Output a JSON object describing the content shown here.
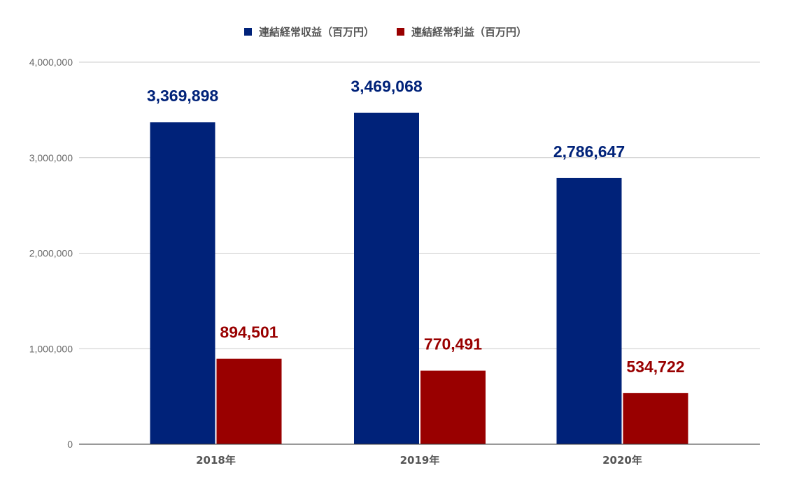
{
  "chart_data": {
    "type": "bar",
    "categories": [
      "2018年",
      "2019年",
      "2020年"
    ],
    "series": [
      {
        "name": "連結経常収益（百万円）",
        "color": "#002279",
        "values": [
          3369898,
          3469068,
          2786647
        ]
      },
      {
        "name": "連結経常利益（百万円）",
        "color": "#990000",
        "values": [
          894501,
          770491,
          534722
        ]
      }
    ],
    "ylim": [
      0,
      4000000
    ],
    "yticks": [
      0,
      1000000,
      2000000,
      3000000,
      4000000
    ],
    "ytick_labels": [
      "0",
      "1,000,000",
      "2,000,000",
      "3,000,000",
      "4,000,000"
    ],
    "data_labels": [
      [
        "3,369,898",
        "3,469,068",
        "2,786,647"
      ],
      [
        "894,501",
        "770,491",
        "534,722"
      ]
    ],
    "grid": true,
    "legend_position": "top-center",
    "title": "",
    "xlabel": "",
    "ylabel": ""
  }
}
